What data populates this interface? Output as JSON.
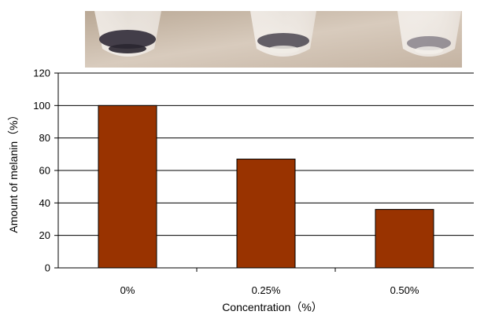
{
  "photo": {
    "tube_count": 3,
    "background_color": "#c9b8a6",
    "pellet_color": "#3a3540"
  },
  "chart_data": {
    "type": "bar",
    "categories": [
      "0%",
      "0.25%",
      "0.50%"
    ],
    "values": [
      100,
      67,
      36
    ],
    "title": "",
    "xlabel": "Concentration（%）",
    "ylabel": "Amount of melanin（%）",
    "ylim": [
      0,
      120
    ],
    "yticks": [
      0,
      20,
      40,
      60,
      80,
      100,
      120
    ],
    "grid": true,
    "legend": "none",
    "bar_color": "#993300"
  }
}
